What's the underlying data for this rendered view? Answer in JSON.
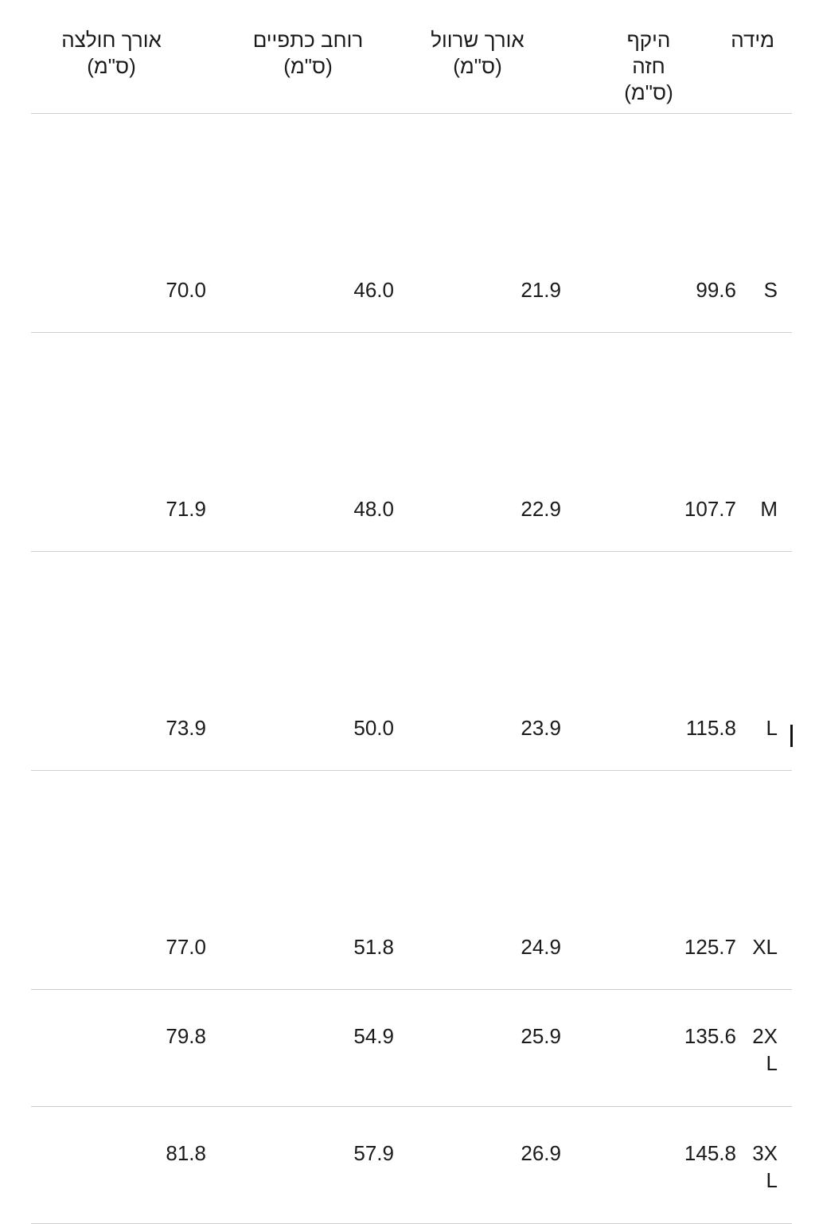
{
  "table": {
    "headers": {
      "size": "מידה",
      "chest": "היקף חזה (ס\"מ)",
      "sleeve": "אורך שרוול (ס\"מ)",
      "shoulder": "רוחב כתפיים (ס\"מ)",
      "length": "אורך חולצה (ס\"מ)"
    },
    "rows": [
      {
        "size": "S",
        "chest": "99.6",
        "sleeve": "21.9",
        "shoulder": "46.0",
        "length": "70.0"
      },
      {
        "size": "M",
        "chest": "107.7",
        "sleeve": "22.9",
        "shoulder": "48.0",
        "length": "71.9"
      },
      {
        "size": "L",
        "chest": "115.8",
        "sleeve": "23.9",
        "shoulder": "50.0",
        "length": "73.9"
      },
      {
        "size": "XL",
        "chest": "125.7",
        "sleeve": "24.9",
        "shoulder": "51.8",
        "length": "77.0"
      },
      {
        "size": "2XL",
        "chest": "135.6",
        "sleeve": "25.9",
        "shoulder": "54.9",
        "length": "79.8"
      },
      {
        "size": "3XL",
        "chest": "145.8",
        "sleeve": "26.9",
        "shoulder": "57.9",
        "length": "81.8"
      }
    ]
  }
}
